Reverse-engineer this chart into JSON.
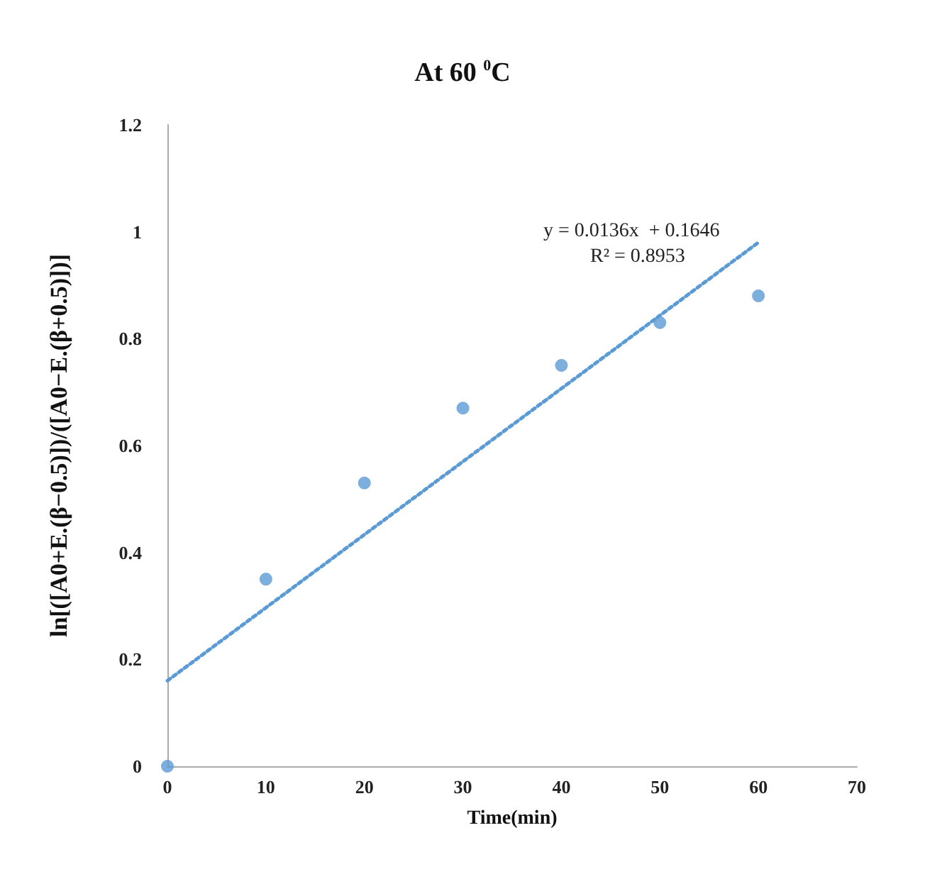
{
  "chart_data": {
    "type": "scatter",
    "title": "At 60 $^{0}$C",
    "xlabel": "Time(min)",
    "ylabel": "ln[([A0+E.(β−0.5)])/([A0−E.(β+0.5)])]",
    "x": [
      0,
      10,
      20,
      30,
      40,
      50,
      60
    ],
    "series": [
      {
        "color": "#5b9bd5",
        "values": [
          0,
          0.35,
          0.53,
          0.67,
          0.75,
          0.83,
          0.88
        ]
      },
      {
        "type": "line",
        "color": "#5b9bd5",
        "x": [
          0,
          60
        ],
        "values": [
          0.16,
          0.98
        ],
        "line_style": "dotted",
        "marker": "none"
      }
    ],
    "marker": "circle",
    "xlim": [
      0,
      70
    ],
    "xticks": [
      0,
      10,
      20,
      30,
      40,
      50,
      60,
      70
    ],
    "ylim": [
      0,
      1.2
    ],
    "yticks": [
      0,
      0.2,
      0.4,
      0.6,
      0.8,
      1,
      1.2
    ],
    "grid": false,
    "annotations": [
      "y = 0.0136x  + 0.1646",
      "R² = 0.8953"
    ]
  }
}
